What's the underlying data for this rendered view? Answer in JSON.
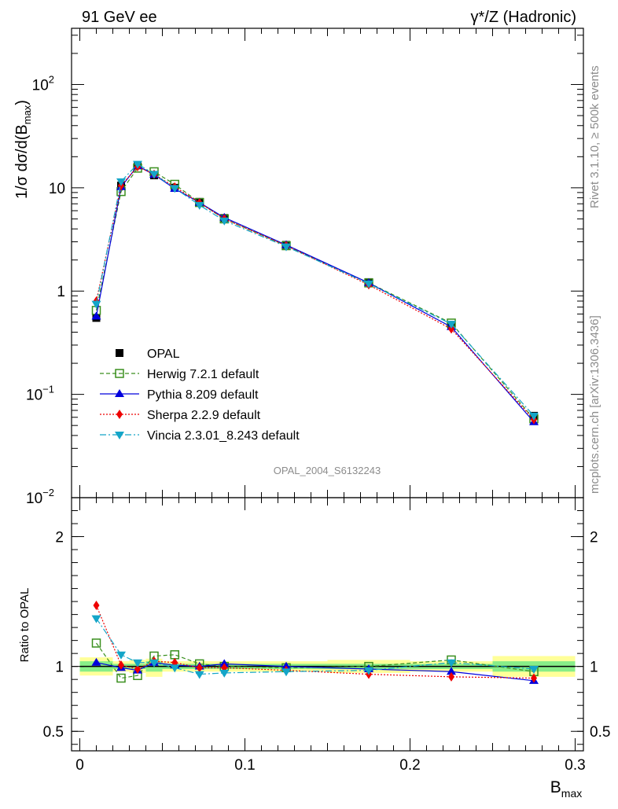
{
  "header": {
    "left_title": "91 GeV ee",
    "right_title": "γ*/Z (Hadronic)"
  },
  "side_labels": {
    "rivet": "Rivet 3.1.10, ≥ 500k events",
    "mcplots": "mcplots.cern.ch [arXiv:1306.3436]"
  },
  "analysis_id": "OPAL_2004_S6132243",
  "colors": {
    "opal": "#000000",
    "herwig": "#3a8f1e",
    "pythia": "#0000dd",
    "sherpa": "#ee0000",
    "vincia": "#14a5c8",
    "band_yellow": "#ffff99",
    "band_green": "#88ee88"
  },
  "chart_data": [
    {
      "type": "line",
      "panel": "main",
      "yscale": "log",
      "xlim": [
        -0.005,
        0.305
      ],
      "ylim": [
        0.01,
        350
      ],
      "ylabel": "1/σ dσ/d(B",
      "ylabel_sub": "max",
      "ylabel_end": ")",
      "yticks": [
        {
          "value": 100,
          "base": "10",
          "exp": "2"
        },
        {
          "value": 10,
          "base": "10",
          "exp": ""
        },
        {
          "value": 1,
          "base": "1",
          "exp": ""
        },
        {
          "value": 0.1,
          "base": "10",
          "exp": "−1"
        },
        {
          "value": 0.01,
          "base": "10",
          "exp": "−2"
        }
      ],
      "x": [
        0.01,
        0.025,
        0.035,
        0.045,
        0.0575,
        0.0725,
        0.0875,
        0.125,
        0.175,
        0.225,
        0.275
      ],
      "series": [
        {
          "name": "OPAL",
          "key": "opal",
          "marker": "square",
          "values": [
            0.55,
            10.5,
            16.5,
            13.2,
            10.0,
            7.3,
            5.1,
            2.8,
            1.22,
            0.47,
            0.062
          ]
        },
        {
          "name": "Herwig 7.2.1 default",
          "key": "herwig",
          "marker": "open-square",
          "dash": "5,3",
          "values": [
            0.65,
            9.2,
            15.5,
            14.3,
            10.8,
            7.2,
            5.0,
            2.75,
            1.2,
            0.49,
            0.058
          ]
        },
        {
          "name": "Pythia 8.209 default",
          "key": "pythia",
          "marker": "triangle-up",
          "dash": "",
          "values": [
            0.57,
            10.2,
            16.3,
            13.4,
            9.8,
            7.2,
            5.15,
            2.8,
            1.2,
            0.45,
            0.054
          ]
        },
        {
          "name": "Sherpa 2.2.9 default",
          "key": "sherpa",
          "marker": "diamond",
          "dash": "2,2",
          "values": [
            0.8,
            10.5,
            16.0,
            13.5,
            10.2,
            7.15,
            5.0,
            2.75,
            1.15,
            0.43,
            0.057
          ]
        },
        {
          "name": "Vincia 2.3.01_8.243 default",
          "key": "vincia",
          "marker": "triangle-down",
          "dash": "8,3,2,3",
          "values": [
            0.75,
            11.5,
            17.0,
            13.6,
            9.9,
            6.8,
            4.8,
            2.7,
            1.18,
            0.48,
            0.062
          ]
        }
      ]
    },
    {
      "type": "line",
      "panel": "ratio",
      "ylabel": "Ratio to OPAL",
      "xlabel": "B",
      "xlabel_sub": "max",
      "ylim": [
        0.35,
        2.3
      ],
      "yticks": [
        {
          "value": 2,
          "label": "2"
        },
        {
          "value": 1,
          "label": "1"
        },
        {
          "value": 0.5,
          "label": "0.5"
        }
      ],
      "xticks": [
        {
          "value": 0,
          "label": "0"
        },
        {
          "value": 0.1,
          "label": "0.1"
        },
        {
          "value": 0.2,
          "label": "0.2"
        },
        {
          "value": 0.3,
          "label": "0.3"
        }
      ],
      "bins": [
        [
          0.0,
          0.02
        ],
        [
          0.02,
          0.03
        ],
        [
          0.03,
          0.04
        ],
        [
          0.04,
          0.05
        ],
        [
          0.05,
          0.065
        ],
        [
          0.065,
          0.08
        ],
        [
          0.08,
          0.1
        ],
        [
          0.1,
          0.15
        ],
        [
          0.15,
          0.2
        ],
        [
          0.2,
          0.25
        ],
        [
          0.25,
          0.3
        ]
      ],
      "band_yellow": [
        [
          0.93,
          1.07
        ],
        [
          0.96,
          1.04
        ],
        [
          0.95,
          1.05
        ],
        [
          0.92,
          1.06
        ],
        [
          0.96,
          1.04
        ],
        [
          0.96,
          1.04
        ],
        [
          0.96,
          1.04
        ],
        [
          0.96,
          1.04
        ],
        [
          0.95,
          1.05
        ],
        [
          0.96,
          1.04
        ],
        [
          0.92,
          1.08
        ]
      ],
      "band_green": [
        [
          0.96,
          1.04
        ],
        [
          0.98,
          1.02
        ],
        [
          0.98,
          1.02
        ],
        [
          0.96,
          1.04
        ],
        [
          0.98,
          1.02
        ],
        [
          0.98,
          1.02
        ],
        [
          0.98,
          1.02
        ],
        [
          0.98,
          1.02
        ],
        [
          0.98,
          1.02
        ],
        [
          0.98,
          1.02
        ],
        [
          0.96,
          1.04
        ]
      ],
      "x": [
        0.01,
        0.025,
        0.035,
        0.045,
        0.0575,
        0.0725,
        0.0875,
        0.125,
        0.175,
        0.225,
        0.275
      ],
      "series": [
        {
          "name": "Herwig 7.2.1 default",
          "key": "herwig",
          "marker": "open-square",
          "dash": "5,3",
          "values": [
            1.18,
            0.91,
            0.93,
            1.08,
            1.09,
            1.02,
            1.0,
            0.99,
            1.0,
            1.05,
            0.96
          ]
        },
        {
          "name": "Pythia 8.209 default",
          "key": "pythia",
          "marker": "triangle-up",
          "dash": "",
          "values": [
            1.03,
            0.99,
            0.97,
            1.03,
            1.01,
            1.0,
            1.02,
            1.0,
            0.98,
            0.96,
            0.89
          ]
        },
        {
          "name": "Sherpa 2.2.9 default",
          "key": "sherpa",
          "marker": "diamond",
          "dash": "2,2",
          "values": [
            1.47,
            1.01,
            0.98,
            1.04,
            1.03,
            0.99,
            0.99,
            0.97,
            0.94,
            0.92,
            0.91
          ]
        },
        {
          "name": "Vincia 2.3.01_8.243 default",
          "key": "vincia",
          "marker": "triangle-down",
          "dash": "8,3,2,3",
          "values": [
            1.37,
            1.09,
            1.03,
            1.03,
            0.99,
            0.94,
            0.95,
            0.96,
            0.97,
            1.03,
            0.98
          ]
        }
      ]
    }
  ]
}
